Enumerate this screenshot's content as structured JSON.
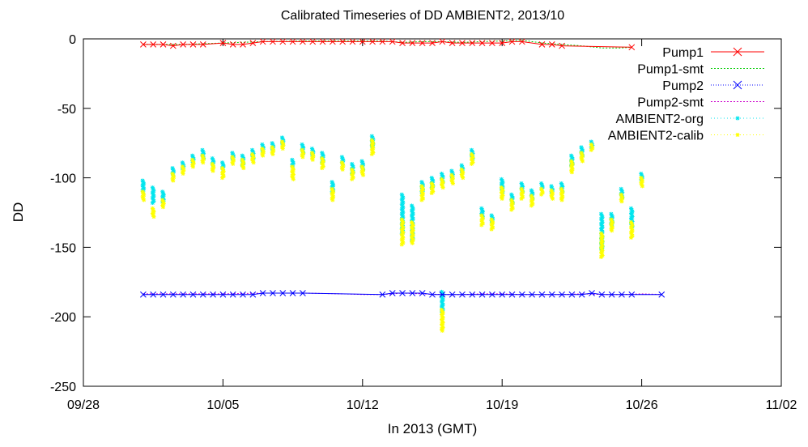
{
  "chart_data": {
    "type": "scatter",
    "title": "Calibrated Timeseries of DD AMBIENT2, 2013/10",
    "xlabel": "In 2013 (GMT)",
    "ylabel": "DD",
    "xlim": [
      "2013-09-28",
      "2013-11-02"
    ],
    "ylim": [
      -250,
      0
    ],
    "xticks": [
      {
        "date": "2013-09-28",
        "label": "09/28"
      },
      {
        "date": "2013-10-05",
        "label": "10/05"
      },
      {
        "date": "2013-10-12",
        "label": "10/12"
      },
      {
        "date": "2013-10-19",
        "label": "10/19"
      },
      {
        "date": "2013-10-26",
        "label": "10/26"
      },
      {
        "date": "2013-11-02",
        "label": "11/02"
      }
    ],
    "yticks": [
      0,
      -50,
      -100,
      -150,
      -200,
      -250
    ],
    "legend_position": "top-right",
    "grid": false,
    "series": [
      {
        "name": "Pump1",
        "style": "line-x",
        "color": "#ff0000",
        "points": [
          [
            "2013-10-01",
            -4
          ],
          [
            "2013-10-01T12:00",
            -4
          ],
          [
            "2013-10-02",
            -4
          ],
          [
            "2013-10-02T12:00",
            -5
          ],
          [
            "2013-10-03",
            -4
          ],
          [
            "2013-10-03T12:00",
            -4
          ],
          [
            "2013-10-04",
            -4
          ],
          [
            "2013-10-05",
            -3
          ],
          [
            "2013-10-05T12:00",
            -4
          ],
          [
            "2013-10-06",
            -4
          ],
          [
            "2013-10-06T12:00",
            -3
          ],
          [
            "2013-10-07",
            -2
          ],
          [
            "2013-10-07T12:00",
            -2
          ],
          [
            "2013-10-08",
            -2
          ],
          [
            "2013-10-08T12:00",
            -2
          ],
          [
            "2013-10-09",
            -2
          ],
          [
            "2013-10-09T12:00",
            -2
          ],
          [
            "2013-10-10",
            -2
          ],
          [
            "2013-10-10T12:00",
            -2
          ],
          [
            "2013-10-11",
            -2
          ],
          [
            "2013-10-11T12:00",
            -2
          ],
          [
            "2013-10-12",
            -2
          ],
          [
            "2013-10-12T12:00",
            -2
          ],
          [
            "2013-10-13",
            -2
          ],
          [
            "2013-10-13T12:00",
            -2
          ],
          [
            "2013-10-14",
            -3
          ],
          [
            "2013-10-14T12:00",
            -3
          ],
          [
            "2013-10-15",
            -3
          ],
          [
            "2013-10-15T12:00",
            -3
          ],
          [
            "2013-10-16",
            -2
          ],
          [
            "2013-10-16T12:00",
            -3
          ],
          [
            "2013-10-17",
            -3
          ],
          [
            "2013-10-17T12:00",
            -3
          ],
          [
            "2013-10-18",
            -3
          ],
          [
            "2013-10-18T12:00",
            -3
          ],
          [
            "2013-10-19",
            -3
          ],
          [
            "2013-10-19T12:00",
            -2
          ],
          [
            "2013-10-20",
            -2
          ],
          [
            "2013-10-21",
            -4
          ],
          [
            "2013-10-21T12:00",
            -4
          ],
          [
            "2013-10-22",
            -5
          ],
          [
            "2013-10-25T12:00",
            -6
          ]
        ]
      },
      {
        "name": "Pump1-smt",
        "style": "line",
        "color": "#00cc00",
        "points": [
          [
            "2013-10-01",
            -4
          ],
          [
            "2013-10-03",
            -4
          ],
          [
            "2013-10-05",
            -3
          ],
          [
            "2013-10-07",
            -2
          ],
          [
            "2013-10-09",
            -1.5
          ],
          [
            "2013-10-11",
            -1.5
          ],
          [
            "2013-10-13",
            -1.5
          ],
          [
            "2013-10-14",
            -2.5
          ],
          [
            "2013-10-15",
            -2
          ],
          [
            "2013-10-16",
            -2
          ],
          [
            "2013-10-17",
            -2.5
          ],
          [
            "2013-10-18",
            -2
          ],
          [
            "2013-10-19",
            -1.5
          ],
          [
            "2013-10-20",
            -1
          ],
          [
            "2013-10-21",
            -3
          ],
          [
            "2013-10-22",
            -4
          ],
          [
            "2013-10-23",
            -5
          ],
          [
            "2013-10-24",
            -6.5
          ],
          [
            "2013-10-25",
            -6.5
          ],
          [
            "2013-10-25T12:00",
            -6
          ]
        ]
      },
      {
        "name": "Pump2",
        "style": "line-x",
        "color": "#0000ff",
        "points": [
          [
            "2013-10-01",
            -184
          ],
          [
            "2013-10-01T12:00",
            -184
          ],
          [
            "2013-10-02",
            -184
          ],
          [
            "2013-10-02T12:00",
            -184
          ],
          [
            "2013-10-03",
            -184
          ],
          [
            "2013-10-03T12:00",
            -184
          ],
          [
            "2013-10-04",
            -184
          ],
          [
            "2013-10-04T12:00",
            -184
          ],
          [
            "2013-10-05",
            -184
          ],
          [
            "2013-10-05T12:00",
            -184
          ],
          [
            "2013-10-06",
            -184
          ],
          [
            "2013-10-06T12:00",
            -184
          ],
          [
            "2013-10-07",
            -183
          ],
          [
            "2013-10-07T12:00",
            -183
          ],
          [
            "2013-10-08",
            -183
          ],
          [
            "2013-10-08T12:00",
            -183
          ],
          [
            "2013-10-09",
            -183
          ],
          [
            "2013-10-13",
            -184
          ],
          [
            "2013-10-13T12:00",
            -183
          ],
          [
            "2013-10-14",
            -183
          ],
          [
            "2013-10-14T12:00",
            -183
          ],
          [
            "2013-10-15",
            -183
          ],
          [
            "2013-10-15T12:00",
            -184
          ],
          [
            "2013-10-16",
            -184
          ],
          [
            "2013-10-16T12:00",
            -184
          ],
          [
            "2013-10-17",
            -184
          ],
          [
            "2013-10-17T12:00",
            -184
          ],
          [
            "2013-10-18",
            -184
          ],
          [
            "2013-10-18T12:00",
            -184
          ],
          [
            "2013-10-19",
            -184
          ],
          [
            "2013-10-19T12:00",
            -184
          ],
          [
            "2013-10-20",
            -184
          ],
          [
            "2013-10-20T12:00",
            -184
          ],
          [
            "2013-10-21",
            -184
          ],
          [
            "2013-10-21T12:00",
            -184
          ],
          [
            "2013-10-22",
            -184
          ],
          [
            "2013-10-22T12:00",
            -184
          ],
          [
            "2013-10-23",
            -184
          ],
          [
            "2013-10-23T12:00",
            -183
          ],
          [
            "2013-10-24",
            -184
          ],
          [
            "2013-10-24T12:00",
            -184
          ],
          [
            "2013-10-25",
            -184
          ],
          [
            "2013-10-25T12:00",
            -184
          ],
          [
            "2013-10-27",
            -184
          ]
        ]
      },
      {
        "name": "Pump2-smt",
        "style": "line",
        "color": "#cc00cc",
        "points": [
          [
            "2013-10-01",
            -183.5
          ],
          [
            "2013-10-03",
            -183.5
          ],
          [
            "2013-10-05",
            -183.5
          ],
          [
            "2013-10-07",
            -183
          ],
          [
            "2013-10-09",
            -183
          ],
          [
            "2013-10-11",
            -183.5
          ],
          [
            "2013-10-12",
            -184
          ],
          [
            "2013-10-13",
            -184
          ],
          [
            "2013-10-14",
            -183
          ],
          [
            "2013-10-15",
            -183.5
          ],
          [
            "2013-10-16",
            -184
          ],
          [
            "2013-10-17",
            -184
          ],
          [
            "2013-10-18",
            -183.5
          ],
          [
            "2013-10-19",
            -183.5
          ],
          [
            "2013-10-20",
            -184
          ],
          [
            "2013-10-21",
            -184
          ],
          [
            "2013-10-22",
            -184
          ],
          [
            "2013-10-23",
            -183.5
          ],
          [
            "2013-10-24",
            -184
          ],
          [
            "2013-10-25",
            -184
          ],
          [
            "2013-10-26",
            -183.5
          ],
          [
            "2013-10-27",
            -184
          ]
        ]
      },
      {
        "name": "AMBIENT2-org",
        "style": "points",
        "color": "#00e5ee",
        "clusters": [
          [
            "2013-10-01",
            -102,
            -110
          ],
          [
            "2013-10-01T12:00",
            -107,
            -118
          ],
          [
            "2013-10-02",
            -110,
            -117
          ],
          [
            "2013-10-02T12:00",
            -93,
            -98
          ],
          [
            "2013-10-03",
            -89,
            -93
          ],
          [
            "2013-10-03T12:00",
            -84,
            -89
          ],
          [
            "2013-10-04",
            -80,
            -86
          ],
          [
            "2013-10-04T12:00",
            -86,
            -91
          ],
          [
            "2013-10-05",
            -89,
            -94
          ],
          [
            "2013-10-05T12:00",
            -82,
            -87
          ],
          [
            "2013-10-06",
            -84,
            -91
          ],
          [
            "2013-10-06T12:00",
            -80,
            -86
          ],
          [
            "2013-10-07",
            -76,
            -81
          ],
          [
            "2013-10-07T12:00",
            -75,
            -80
          ],
          [
            "2013-10-08",
            -71,
            -76
          ],
          [
            "2013-10-08T12:00",
            -87,
            -92
          ],
          [
            "2013-10-09",
            -76,
            -82
          ],
          [
            "2013-10-09T12:00",
            -79,
            -84
          ],
          [
            "2013-10-10",
            -82,
            -89
          ],
          [
            "2013-10-10T12:00",
            -103,
            -110
          ],
          [
            "2013-10-11",
            -85,
            -90
          ],
          [
            "2013-10-11T12:00",
            -90,
            -97
          ],
          [
            "2013-10-12",
            -88,
            -94
          ],
          [
            "2013-10-12T12:00",
            -70,
            -78
          ],
          [
            "2013-10-14",
            -112,
            -140
          ],
          [
            "2013-10-14T12:00",
            -120,
            -145
          ],
          [
            "2013-10-15",
            -103,
            -110
          ],
          [
            "2013-10-15T12:00",
            -100,
            -107
          ],
          [
            "2013-10-16",
            -97,
            -103
          ],
          [
            "2013-10-16T12:00",
            -95,
            -100
          ],
          [
            "2013-10-17",
            -91,
            -96
          ],
          [
            "2013-10-17T12:00",
            -80,
            -86
          ],
          [
            "2013-10-18",
            -122,
            -128
          ],
          [
            "2013-10-18T12:00",
            -127,
            -132
          ],
          [
            "2013-10-19",
            -101,
            -110
          ],
          [
            "2013-10-19T12:00",
            -112,
            -118
          ],
          [
            "2013-10-20",
            -104,
            -110
          ],
          [
            "2013-10-20T12:00",
            -109,
            -115
          ],
          [
            "2013-10-21",
            -104,
            -108
          ],
          [
            "2013-10-21T12:00",
            -106,
            -110
          ],
          [
            "2013-10-22",
            -104,
            -110
          ],
          [
            "2013-10-22T12:00",
            -84,
            -91
          ],
          [
            "2013-10-23",
            -78,
            -84
          ],
          [
            "2013-10-23T12:00",
            -74,
            -78
          ],
          [
            "2013-10-24",
            -126,
            -152
          ],
          [
            "2013-10-24T12:00",
            -126,
            -134
          ],
          [
            "2013-10-25",
            -108,
            -114
          ],
          [
            "2013-10-25T12:00",
            -122,
            -135
          ],
          [
            "2013-10-26",
            -97,
            -101
          ],
          [
            "2013-10-16",
            -182,
            -197
          ]
        ]
      },
      {
        "name": "AMBIENT2-calib",
        "style": "points",
        "color": "#ffff00",
        "clusters": [
          [
            "2013-10-01",
            -110,
            -116
          ],
          [
            "2013-10-01T12:00",
            -122,
            -128
          ],
          [
            "2013-10-02",
            -116,
            -121
          ],
          [
            "2013-10-02T12:00",
            -97,
            -102
          ],
          [
            "2013-10-03",
            -92,
            -97
          ],
          [
            "2013-10-03T12:00",
            -87,
            -92
          ],
          [
            "2013-10-04",
            -84,
            -89
          ],
          [
            "2013-10-04T12:00",
            -90,
            -95
          ],
          [
            "2013-10-05",
            -93,
            -100
          ],
          [
            "2013-10-05T12:00",
            -85,
            -90
          ],
          [
            "2013-10-06",
            -87,
            -93
          ],
          [
            "2013-10-06T12:00",
            -83,
            -89
          ],
          [
            "2013-10-07",
            -79,
            -84
          ],
          [
            "2013-10-07T12:00",
            -78,
            -83
          ],
          [
            "2013-10-08",
            -74,
            -79
          ],
          [
            "2013-10-08T12:00",
            -92,
            -101
          ],
          [
            "2013-10-09",
            -80,
            -85
          ],
          [
            "2013-10-09T12:00",
            -82,
            -87
          ],
          [
            "2013-10-10",
            -86,
            -93
          ],
          [
            "2013-10-10T12:00",
            -108,
            -116
          ],
          [
            "2013-10-11",
            -89,
            -94
          ],
          [
            "2013-10-11T12:00",
            -94,
            -101
          ],
          [
            "2013-10-12",
            -92,
            -98
          ],
          [
            "2013-10-12T12:00",
            -73,
            -83
          ],
          [
            "2013-10-14",
            -130,
            -148
          ],
          [
            "2013-10-14T12:00",
            -132,
            -147
          ],
          [
            "2013-10-15",
            -106,
            -116
          ],
          [
            "2013-10-15T12:00",
            -104,
            -111
          ],
          [
            "2013-10-16",
            -101,
            -107
          ],
          [
            "2013-10-16T12:00",
            -98,
            -104
          ],
          [
            "2013-10-17",
            -94,
            -100
          ],
          [
            "2013-10-17T12:00",
            -83,
            -90
          ],
          [
            "2013-10-18",
            -127,
            -134
          ],
          [
            "2013-10-18T12:00",
            -130,
            -137
          ],
          [
            "2013-10-19",
            -107,
            -115
          ],
          [
            "2013-10-19T12:00",
            -116,
            -123
          ],
          [
            "2013-10-20",
            -108,
            -115
          ],
          [
            "2013-10-20T12:00",
            -113,
            -120
          ],
          [
            "2013-10-21",
            -108,
            -112
          ],
          [
            "2013-10-21T12:00",
            -109,
            -115
          ],
          [
            "2013-10-22",
            -108,
            -116
          ],
          [
            "2013-10-22T12:00",
            -88,
            -96
          ],
          [
            "2013-10-23",
            -82,
            -88
          ],
          [
            "2013-10-23T12:00",
            -76,
            -80
          ],
          [
            "2013-10-24",
            -140,
            -157
          ],
          [
            "2013-10-24T12:00",
            -130,
            -138
          ],
          [
            "2013-10-25",
            -112,
            -117
          ],
          [
            "2013-10-25T12:00",
            -132,
            -143
          ],
          [
            "2013-10-26",
            -100,
            -106
          ],
          [
            "2013-10-16",
            -195,
            -210
          ]
        ]
      }
    ]
  }
}
